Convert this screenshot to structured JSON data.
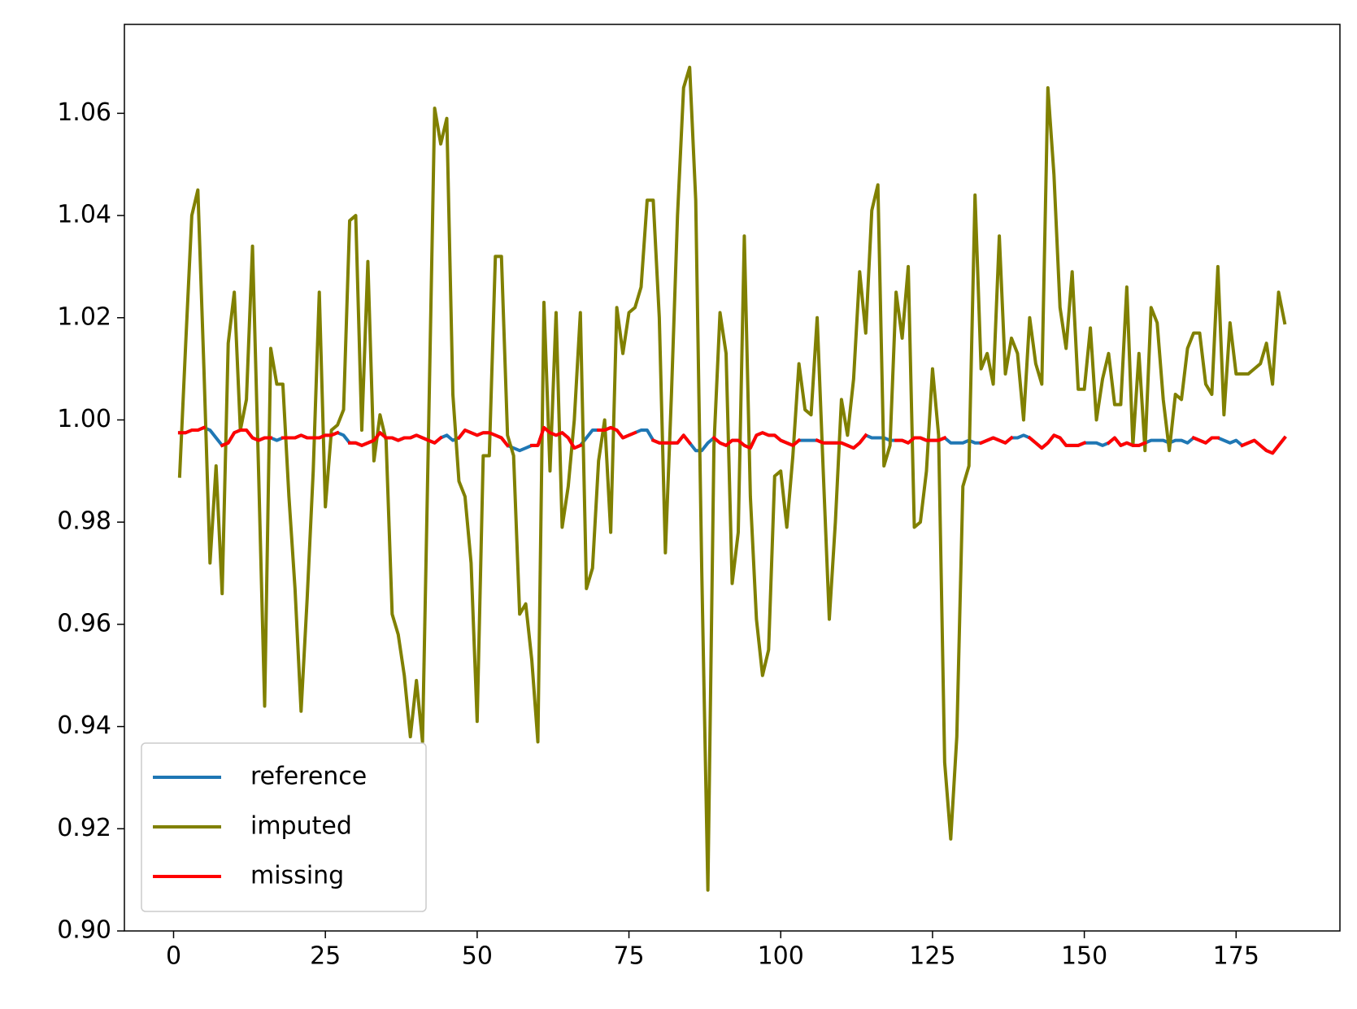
{
  "chart_data": {
    "type": "line",
    "x": [
      1,
      2,
      3,
      4,
      5,
      6,
      7,
      8,
      9,
      10,
      11,
      12,
      13,
      14,
      15,
      16,
      17,
      18,
      19,
      20,
      21,
      22,
      23,
      24,
      25,
      26,
      27,
      28,
      29,
      30,
      31,
      32,
      33,
      34,
      35,
      36,
      37,
      38,
      39,
      40,
      41,
      42,
      43,
      44,
      45,
      46,
      47,
      48,
      49,
      50,
      51,
      52,
      53,
      54,
      55,
      56,
      57,
      58,
      59,
      60,
      61,
      62,
      63,
      64,
      65,
      66,
      67,
      68,
      69,
      70,
      71,
      72,
      73,
      74,
      75,
      76,
      77,
      78,
      79,
      80,
      81,
      82,
      83,
      84,
      85,
      86,
      87,
      88,
      89,
      90,
      91,
      92,
      93,
      94,
      95,
      96,
      97,
      98,
      99,
      100,
      101,
      102,
      103,
      104,
      105,
      106,
      107,
      108,
      109,
      110,
      111,
      112,
      113,
      114,
      115,
      116,
      117,
      118,
      119,
      120,
      121,
      122,
      123,
      124,
      125,
      126,
      127,
      128,
      129,
      130,
      131,
      132,
      133,
      134,
      135,
      136,
      137,
      138,
      139,
      140,
      141,
      142,
      143,
      144,
      145,
      146,
      147,
      148,
      149,
      150,
      151,
      152,
      153,
      154,
      155,
      156,
      157,
      158,
      159,
      160,
      161,
      162,
      163,
      164,
      165,
      166,
      167,
      168,
      169,
      170,
      171,
      172,
      173,
      174,
      175,
      176,
      177,
      178,
      179,
      180,
      181,
      182,
      183
    ],
    "series": [
      {
        "name": "reference",
        "color": "#1f77b4",
        "values": [
          0.9975,
          0.9975,
          0.998,
          0.998,
          0.9985,
          0.998,
          0.9965,
          0.995,
          0.9955,
          0.9975,
          0.998,
          0.998,
          0.9965,
          0.996,
          0.9965,
          0.9965,
          0.996,
          0.9965,
          0.9965,
          0.9965,
          0.997,
          0.9965,
          0.9965,
          0.9965,
          0.997,
          0.997,
          0.9975,
          0.997,
          0.9955,
          0.9955,
          0.995,
          0.9955,
          0.996,
          0.9975,
          0.9965,
          0.9965,
          0.996,
          0.9965,
          0.9965,
          0.997,
          0.9965,
          0.996,
          0.9955,
          0.9965,
          0.997,
          0.996,
          0.9965,
          0.998,
          0.9975,
          0.997,
          0.9975,
          0.9975,
          0.997,
          0.9965,
          0.995,
          0.9945,
          0.994,
          0.9945,
          0.995,
          0.995,
          0.9985,
          0.9975,
          0.997,
          0.9975,
          0.9965,
          0.9945,
          0.995,
          0.9965,
          0.998,
          0.998,
          0.998,
          0.9985,
          0.998,
          0.9965,
          0.997,
          0.9975,
          0.998,
          0.998,
          0.996,
          0.9955,
          0.9955,
          0.9955,
          0.9955,
          0.997,
          0.9955,
          0.994,
          0.994,
          0.9955,
          0.9965,
          0.9955,
          0.995,
          0.996,
          0.996,
          0.995,
          0.9945,
          0.997,
          0.9975,
          0.997,
          0.997,
          0.996,
          0.9955,
          0.995,
          0.996,
          0.996,
          0.996,
          0.996,
          0.9955,
          0.9955,
          0.9955,
          0.9955,
          0.995,
          0.9945,
          0.9955,
          0.997,
          0.9965,
          0.9965,
          0.9965,
          0.996,
          0.996,
          0.996,
          0.9955,
          0.9965,
          0.9965,
          0.996,
          0.996,
          0.996,
          0.9965,
          0.9955,
          0.9955,
          0.9955,
          0.996,
          0.9955,
          0.9955,
          0.996,
          0.9965,
          0.996,
          0.9955,
          0.9965,
          0.9965,
          0.997,
          0.9965,
          0.9955,
          0.9945,
          0.9955,
          0.997,
          0.9965,
          0.995,
          0.995,
          0.995,
          0.9955,
          0.9955,
          0.9955,
          0.995,
          0.9955,
          0.9965,
          0.995,
          0.9955,
          0.995,
          0.995,
          0.9955,
          0.996,
          0.996,
          0.996,
          0.9955,
          0.996,
          0.996,
          0.9955,
          0.9965,
          0.996,
          0.9955,
          0.9965,
          0.9965,
          0.996,
          0.9955,
          0.996,
          0.995,
          0.9955,
          0.996,
          0.995,
          0.994,
          0.9935,
          0.995,
          0.9965
        ]
      },
      {
        "name": "imputed",
        "color": "#808000",
        "values": [
          0.989,
          1.015,
          1.04,
          1.045,
          1.01,
          0.972,
          0.991,
          0.966,
          1.015,
          1.025,
          0.998,
          1.004,
          1.034,
          0.99,
          0.944,
          1.014,
          1.007,
          1.007,
          0.985,
          0.967,
          0.943,
          0.965,
          0.99,
          1.025,
          0.983,
          0.998,
          0.999,
          1.002,
          1.039,
          1.04,
          0.998,
          1.031,
          0.992,
          1.001,
          0.996,
          0.962,
          0.958,
          0.95,
          0.938,
          0.949,
          0.937,
          0.998,
          1.061,
          1.054,
          1.059,
          1.005,
          0.988,
          0.985,
          0.972,
          0.941,
          0.993,
          0.993,
          1.032,
          1.032,
          0.997,
          0.993,
          0.962,
          0.964,
          0.953,
          0.937,
          1.023,
          0.99,
          1.021,
          0.979,
          0.987,
          1.0,
          1.021,
          0.967,
          0.971,
          0.992,
          1.0,
          0.978,
          1.022,
          1.013,
          1.021,
          1.022,
          1.026,
          1.043,
          1.043,
          1.02,
          0.974,
          1.005,
          1.04,
          1.065,
          1.069,
          1.043,
          0.97,
          0.908,
          0.995,
          1.021,
          1.013,
          0.968,
          0.978,
          1.036,
          0.985,
          0.961,
          0.95,
          0.955,
          0.989,
          0.99,
          0.979,
          0.993,
          1.011,
          1.002,
          1.001,
          1.02,
          0.99,
          0.961,
          0.98,
          1.004,
          0.997,
          1.008,
          1.029,
          1.017,
          1.041,
          1.046,
          0.991,
          0.995,
          1.025,
          1.016,
          1.03,
          0.979,
          0.98,
          0.99,
          1.01,
          0.997,
          0.933,
          0.918,
          0.938,
          0.987,
          0.991,
          1.044,
          1.01,
          1.013,
          1.007,
          1.036,
          1.009,
          1.016,
          1.013,
          1.0,
          1.02,
          1.011,
          1.007,
          1.065,
          1.048,
          1.022,
          1.014,
          1.029,
          1.006,
          1.006,
          1.018,
          1.0,
          1.008,
          1.013,
          1.003,
          1.003,
          1.026,
          0.995,
          1.013,
          0.994,
          1.022,
          1.019,
          1.004,
          0.994,
          1.005,
          1.004,
          1.014,
          1.017,
          1.017,
          1.007,
          1.005,
          1.03,
          1.001,
          1.019,
          1.009,
          1.009,
          1.009,
          1.01,
          1.011,
          1.015,
          1.007,
          1.025,
          1.019
        ]
      },
      {
        "name": "missing",
        "color": "#ff0000",
        "values": [
          0.9975,
          0.9975,
          0.998,
          0.998,
          0.9985,
          null,
          null,
          0.995,
          0.9955,
          0.9975,
          0.998,
          0.998,
          0.9965,
          0.996,
          0.9965,
          0.9965,
          null,
          0.9965,
          0.9965,
          0.9965,
          0.997,
          0.9965,
          0.9965,
          0.9965,
          0.997,
          0.997,
          0.9975,
          null,
          0.9955,
          0.9955,
          0.995,
          0.9955,
          0.996,
          0.9975,
          0.9965,
          0.9965,
          0.996,
          0.9965,
          0.9965,
          0.997,
          0.9965,
          0.996,
          0.9955,
          0.9965,
          null,
          null,
          0.9965,
          0.998,
          0.9975,
          0.997,
          0.9975,
          0.9975,
          0.997,
          0.9965,
          0.995,
          null,
          null,
          null,
          0.995,
          0.995,
          0.9985,
          0.9975,
          0.997,
          0.9975,
          0.9965,
          0.9945,
          0.995,
          null,
          null,
          0.998,
          0.998,
          0.9985,
          0.998,
          0.9965,
          0.997,
          0.9975,
          null,
          null,
          0.996,
          0.9955,
          0.9955,
          0.9955,
          0.9955,
          0.997,
          0.9955,
          null,
          null,
          null,
          0.9965,
          0.9955,
          0.995,
          0.996,
          0.996,
          0.995,
          0.9945,
          0.997,
          0.9975,
          0.997,
          0.997,
          0.996,
          0.9955,
          0.995,
          0.996,
          null,
          null,
          0.996,
          0.9955,
          0.9955,
          0.9955,
          0.9955,
          0.995,
          0.9945,
          0.9955,
          0.997,
          null,
          null,
          null,
          null,
          0.996,
          0.996,
          0.9955,
          0.9965,
          0.9965,
          0.996,
          0.996,
          0.996,
          0.9965,
          null,
          null,
          null,
          null,
          null,
          0.9955,
          0.996,
          0.9965,
          0.996,
          0.9955,
          0.9965,
          null,
          null,
          0.9965,
          0.9955,
          0.9945,
          0.9955,
          0.997,
          0.9965,
          0.995,
          0.995,
          0.995,
          0.9955,
          null,
          null,
          null,
          0.9955,
          0.9965,
          0.995,
          0.9955,
          0.995,
          0.995,
          0.9955,
          null,
          null,
          null,
          null,
          null,
          null,
          null,
          0.9965,
          0.996,
          0.9955,
          0.9965,
          0.9965,
          null,
          null,
          null,
          0.995,
          0.9955,
          0.996,
          0.995,
          0.994,
          0.9935,
          0.995,
          0.9965
        ]
      }
    ],
    "xlim": [
      -8.1,
      192.1
    ],
    "ylim": [
      0.9,
      1.0774
    ],
    "xticks": [
      0,
      25,
      50,
      75,
      100,
      125,
      150,
      175
    ],
    "yticks": [
      {
        "value": 0.9,
        "label": "0.90"
      },
      0.92,
      0.94,
      0.96,
      0.98,
      {
        "value": 1.0,
        "label": "1.00"
      },
      1.02,
      1.04,
      1.06
    ],
    "legend": "lower left",
    "grid": false
  }
}
